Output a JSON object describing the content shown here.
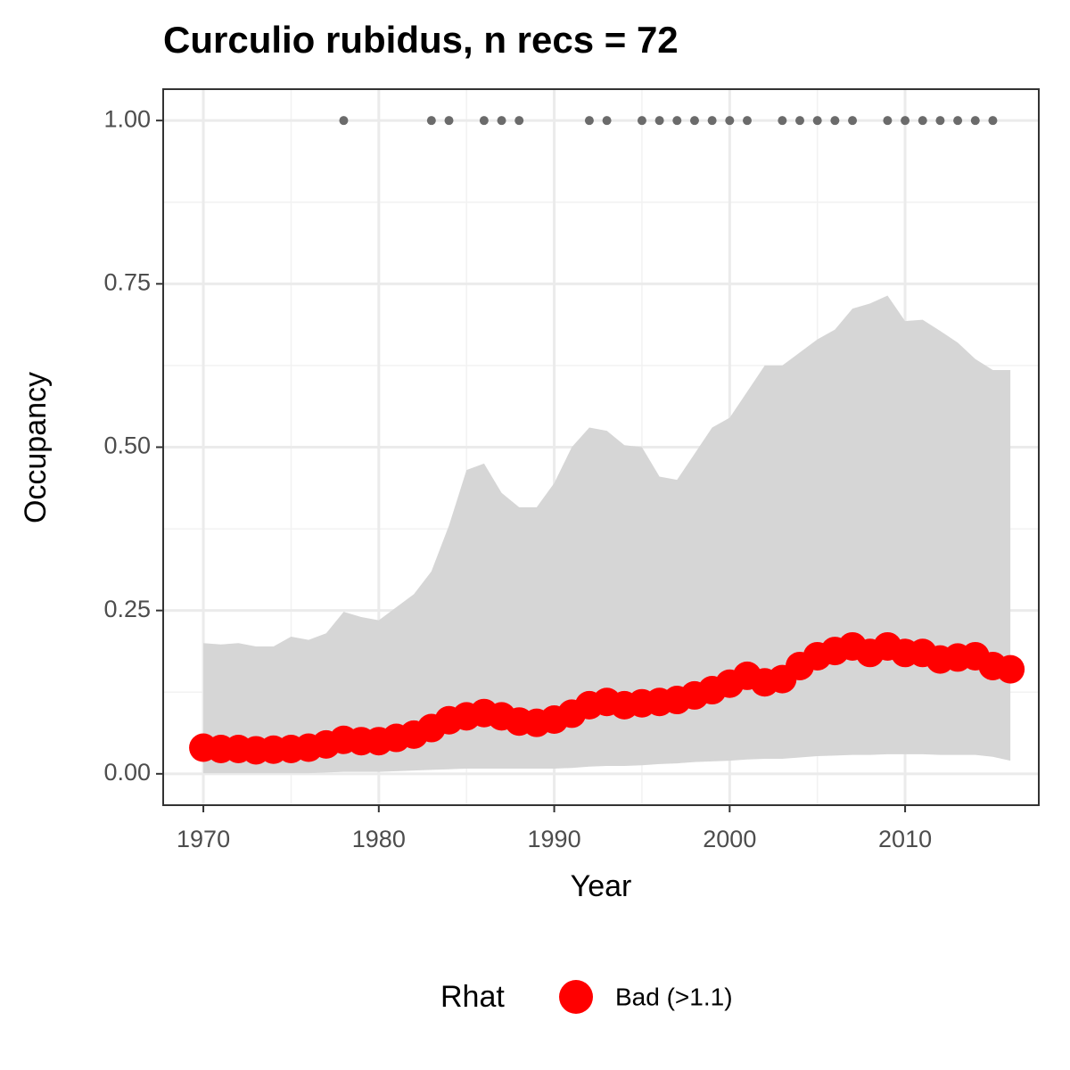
{
  "chart_data": {
    "type": "line",
    "title": "Curculio rubidus, n recs = 72",
    "x_label": "Year",
    "y_label": "Occupancy",
    "legend_title": "Rhat",
    "legend_position": "bottom",
    "x": [
      1970,
      1971,
      1972,
      1973,
      1974,
      1975,
      1976,
      1977,
      1978,
      1979,
      1980,
      1981,
      1982,
      1983,
      1984,
      1985,
      1986,
      1987,
      1988,
      1989,
      1990,
      1991,
      1992,
      1993,
      1994,
      1995,
      1996,
      1997,
      1998,
      1999,
      2000,
      2001,
      2002,
      2003,
      2004,
      2005,
      2006,
      2007,
      2008,
      2009,
      2010,
      2011,
      2012,
      2013,
      2014,
      2015,
      2016
    ],
    "series": [
      {
        "name": "Bad (>1.1)",
        "color": "#ff0000",
        "values": [
          0.04,
          0.038,
          0.038,
          0.036,
          0.037,
          0.038,
          0.04,
          0.045,
          0.052,
          0.05,
          0.05,
          0.055,
          0.06,
          0.07,
          0.082,
          0.088,
          0.093,
          0.088,
          0.08,
          0.078,
          0.083,
          0.092,
          0.105,
          0.11,
          0.105,
          0.108,
          0.11,
          0.113,
          0.12,
          0.128,
          0.138,
          0.15,
          0.14,
          0.145,
          0.165,
          0.18,
          0.188,
          0.195,
          0.185,
          0.195,
          0.185,
          0.185,
          0.175,
          0.178,
          0.18,
          0.165,
          0.16
        ]
      }
    ],
    "ribbon": {
      "color": "#d6d6d6",
      "lower": [
        0.001,
        0.001,
        0.001,
        0.001,
        0.001,
        0.001,
        0.001,
        0.002,
        0.003,
        0.003,
        0.003,
        0.004,
        0.005,
        0.006,
        0.007,
        0.008,
        0.008,
        0.008,
        0.008,
        0.008,
        0.008,
        0.009,
        0.011,
        0.012,
        0.012,
        0.013,
        0.015,
        0.016,
        0.018,
        0.019,
        0.02,
        0.022,
        0.023,
        0.023,
        0.025,
        0.027,
        0.028,
        0.029,
        0.029,
        0.03,
        0.03,
        0.03,
        0.029,
        0.029,
        0.029,
        0.026,
        0.02
      ],
      "upper": [
        0.2,
        0.198,
        0.2,
        0.195,
        0.195,
        0.21,
        0.205,
        0.215,
        0.248,
        0.24,
        0.235,
        0.255,
        0.275,
        0.31,
        0.38,
        0.465,
        0.475,
        0.43,
        0.408,
        0.408,
        0.445,
        0.5,
        0.53,
        0.525,
        0.503,
        0.5,
        0.455,
        0.45,
        0.49,
        0.53,
        0.545,
        0.585,
        0.625,
        0.625,
        0.645,
        0.665,
        0.68,
        0.712,
        0.72,
        0.732,
        0.693,
        0.695,
        0.678,
        0.66,
        0.635,
        0.618,
        0.618
      ]
    },
    "records": {
      "color": "#6b6b6b",
      "x": [
        1978,
        1983,
        1984,
        1986,
        1987,
        1988,
        1992,
        1993,
        1995,
        1996,
        1997,
        1998,
        1999,
        2000,
        2001,
        2003,
        2004,
        2005,
        2006,
        2007,
        2009,
        2010,
        2011,
        2012,
        2013,
        2014,
        2015
      ],
      "values": [
        1,
        1,
        1,
        1,
        1,
        1,
        1,
        1,
        1,
        1,
        1,
        1,
        1,
        1,
        1,
        1,
        1,
        1,
        1,
        1,
        1,
        1,
        1,
        1,
        1,
        1,
        1
      ]
    },
    "xlim": [
      1967.71,
      2017.62
    ],
    "ylim": [
      -0.048,
      1.048
    ],
    "xticks": [
      1970,
      1980,
      1990,
      2000,
      2010
    ],
    "yticks": [
      {
        "value": 0,
        "label": "0.00"
      },
      {
        "value": 0.25,
        "label": "0.25"
      },
      {
        "value": 0.5,
        "label": "0.50"
      },
      {
        "value": 0.75,
        "label": "0.75"
      },
      {
        "value": 1,
        "label": "1.00"
      }
    ],
    "grid": true
  }
}
